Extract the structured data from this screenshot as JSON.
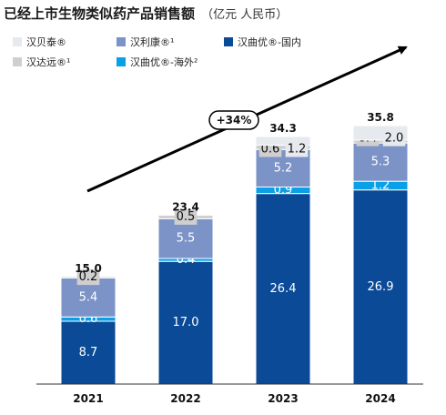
{
  "chart_data": {
    "type": "bar",
    "stacked": true,
    "title": "已经上市生物类似药产品销售额",
    "unit": "（亿元 人民币）",
    "categories": [
      "2021",
      "2022",
      "2023",
      "2024"
    ],
    "series": [
      {
        "key": "hqy_cn",
        "name": "汉曲优®-国内",
        "color": "#0b4a96",
        "label_color": "#ffffff",
        "values": [
          8.7,
          17.0,
          26.4,
          26.9
        ]
      },
      {
        "key": "hqy_os",
        "name": "汉曲优®-海外²",
        "color": "#0aa0e8",
        "label_color": "#ffffff",
        "values": [
          0.6,
          0.4,
          0.9,
          1.2
        ]
      },
      {
        "key": "hlk",
        "name": "汉利康®¹",
        "color": "#7b93c6",
        "label_color": "#ffffff",
        "values": [
          5.4,
          5.5,
          5.2,
          5.3
        ]
      },
      {
        "key": "hdy",
        "name": "汉达远®¹",
        "color": "#cfcfcf",
        "label_color": "#111111",
        "values": [
          0.2,
          0.5,
          0.6,
          0.4
        ]
      },
      {
        "key": "hbt",
        "name": "汉贝泰®",
        "color": "#e6e9ee",
        "label_color": "#111111",
        "values": [
          null,
          null,
          1.2,
          2.0
        ]
      }
    ],
    "totals": [
      "15.0",
      "23.4",
      "34.3",
      "35.8"
    ],
    "growth_label": "+34%",
    "legend": {
      "placement": "top-left",
      "order": [
        "hbt",
        "hlk",
        "hqy_cn",
        "hdy",
        "hqy_os"
      ]
    },
    "ylim": [
      0,
      36
    ],
    "grid": false
  }
}
